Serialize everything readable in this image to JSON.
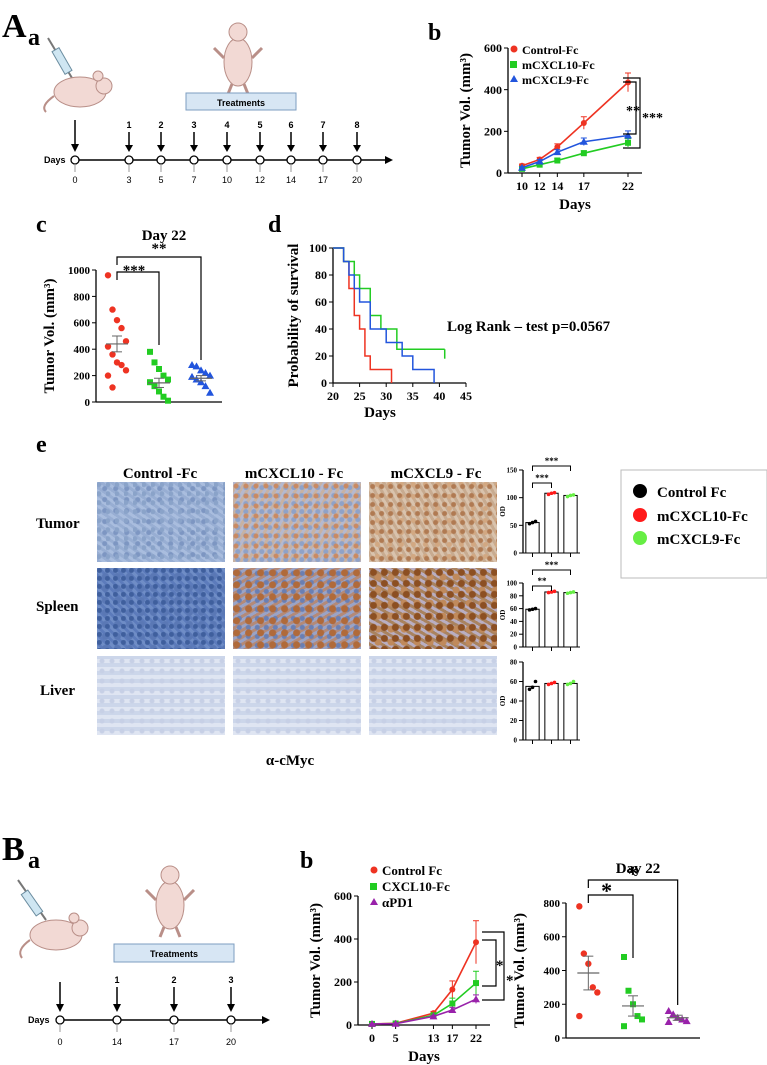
{
  "figure": {
    "panel_A_letter": "A",
    "panel_B_letter": "B",
    "sub_a": "a",
    "sub_b": "b",
    "sub_c": "c",
    "sub_d": "d",
    "sub_e": "e"
  },
  "schedule_A": {
    "treatments_label": "Treatments",
    "days_label": "Days",
    "day_ticks": [
      "0",
      "3",
      "5",
      "7",
      "10",
      "12",
      "14",
      "17",
      "20"
    ],
    "dose_numbers": [
      "1",
      "2",
      "3",
      "4",
      "5",
      "6",
      "7",
      "8"
    ]
  },
  "schedule_B": {
    "treatments_label": "Treatments",
    "days_label": "Days",
    "day_ticks": [
      "0",
      "14",
      "17",
      "20"
    ],
    "dose_numbers": [
      "1",
      "2",
      "3"
    ]
  },
  "ihc": {
    "column_labels": [
      "Control -Fc",
      "mCXCL10 - Fc",
      "mCXCL9 - Fc"
    ],
    "row_labels": [
      "Tumor",
      "Spleen",
      "Liver"
    ],
    "antibody_label": "α-cMyc",
    "legend": [
      {
        "label": "Control Fc",
        "color": "#000000"
      },
      {
        "label": "mCXCL10-Fc",
        "color": "#ff1a1a"
      },
      {
        "label": "mCXCL9-Fc",
        "color": "#66ee44"
      }
    ]
  },
  "colors": {
    "control": "#ee3322",
    "cxcl10": "#22cc22",
    "cxcl9": "#2255dd",
    "apd1": "#9922aa"
  },
  "chart_data": [
    {
      "id": "Ab",
      "type": "line",
      "xlabel": "Days",
      "ylabel": "Tumor Vol. (mm³)",
      "x": [
        10,
        12,
        14,
        17,
        22
      ],
      "xticks": [
        "10",
        "12",
        "14",
        "17",
        "22"
      ],
      "ylim": [
        0,
        600
      ],
      "yticks": [
        "0",
        "200",
        "400",
        "600"
      ],
      "legend_position": "top-left",
      "series": [
        {
          "name": "Control-Fc",
          "values": [
            35,
            65,
            125,
            240,
            435
          ],
          "errors": [
            8,
            10,
            15,
            30,
            45
          ]
        },
        {
          "name": "mCXCL10-Fc",
          "values": [
            20,
            40,
            60,
            95,
            145
          ],
          "errors": [
            5,
            8,
            10,
            12,
            20
          ]
        },
        {
          "name": "mCXCL9-Fc",
          "values": [
            25,
            55,
            100,
            150,
            180
          ],
          "errors": [
            6,
            9,
            12,
            18,
            22
          ]
        }
      ],
      "annotations": [
        "**",
        "***"
      ]
    },
    {
      "id": "Ac",
      "type": "scatter",
      "title": "Day 22",
      "ylabel": "Tumor Vol. (mm³)",
      "ylim": [
        0,
        1000
      ],
      "yticks": [
        "0",
        "200",
        "400",
        "600",
        "800",
        "1000"
      ],
      "series": [
        {
          "name": "Control-Fc",
          "values": [
            960,
            700,
            620,
            560,
            460,
            420,
            360,
            300,
            280,
            240,
            200,
            110
          ],
          "mean": 440,
          "sem": 60
        },
        {
          "name": "mCXCL10-Fc",
          "values": [
            380,
            300,
            250,
            200,
            170,
            150,
            120,
            80,
            40,
            10
          ],
          "mean": 145,
          "sem": 35
        },
        {
          "name": "mCXCL9-Fc",
          "values": [
            280,
            270,
            240,
            220,
            200,
            190,
            170,
            150,
            120,
            70
          ],
          "mean": 180,
          "sem": 20
        }
      ],
      "annotations": [
        "***",
        "**"
      ]
    },
    {
      "id": "Ad",
      "type": "line",
      "xlabel": "Days",
      "ylabel": "Probability of survival",
      "xlim": [
        20,
        45
      ],
      "xticks": [
        "20",
        "25",
        "30",
        "35",
        "40",
        "45"
      ],
      "ylim": [
        0,
        100
      ],
      "yticks": [
        "0",
        "20",
        "40",
        "60",
        "80",
        "100"
      ],
      "annotation": "Log Rank – test p=0.0567",
      "series": [
        {
          "name": "Control-Fc",
          "steps": [
            [
              20,
              100
            ],
            [
              22,
              90
            ],
            [
              23,
              70
            ],
            [
              24,
              50
            ],
            [
              25,
              40
            ],
            [
              26,
              20
            ],
            [
              27,
              10
            ],
            [
              31,
              0
            ]
          ]
        },
        {
          "name": "mCXCL10-Fc",
          "steps": [
            [
              20,
              100
            ],
            [
              22,
              90
            ],
            [
              24,
              80
            ],
            [
              25,
              70
            ],
            [
              27,
              50
            ],
            [
              29,
              40
            ],
            [
              32,
              25
            ],
            [
              41,
              25
            ]
          ]
        },
        {
          "name": "mCXCL9-Fc",
          "steps": [
            [
              20,
              100
            ],
            [
              22,
              90
            ],
            [
              23,
              80
            ],
            [
              24,
              70
            ],
            [
              25,
              60
            ],
            [
              27,
              40
            ],
            [
              30,
              30
            ],
            [
              33,
              20
            ],
            [
              35,
              10
            ],
            [
              39,
              0
            ]
          ]
        }
      ]
    },
    {
      "id": "Ae_tumor",
      "type": "bar",
      "ylabel": "OD",
      "ylim": [
        0,
        150
      ],
      "yticks": [
        "0",
        "50",
        "100",
        "150"
      ],
      "values": [
        55,
        108,
        104
      ],
      "points": [
        [
          53,
          55,
          57
        ],
        [
          106,
          108,
          109
        ],
        [
          102,
          104,
          105
        ]
      ],
      "annotations": [
        "***",
        "***"
      ]
    },
    {
      "id": "Ae_spleen",
      "type": "bar",
      "ylabel": "OD",
      "ylim": [
        0,
        100
      ],
      "yticks": [
        "0",
        "20",
        "40",
        "60",
        "80",
        "100"
      ],
      "values": [
        59,
        86,
        85
      ],
      "points": [
        [
          58,
          59,
          60
        ],
        [
          85,
          86,
          87
        ],
        [
          84,
          85,
          86
        ]
      ],
      "annotations": [
        "**",
        "***"
      ]
    },
    {
      "id": "Ae_liver",
      "type": "bar",
      "ylabel": "OD",
      "ylim": [
        0,
        80
      ],
      "yticks": [
        "0",
        "20",
        "40",
        "60",
        "80"
      ],
      "values": [
        55,
        58,
        58
      ],
      "points": [
        [
          52,
          54,
          60
        ],
        [
          57,
          58,
          59
        ],
        [
          57,
          58,
          60
        ]
      ]
    },
    {
      "id": "Bb",
      "type": "line",
      "xlabel": "Days",
      "ylabel": "Tumor Vol. (mm³)",
      "x": [
        0,
        5,
        13,
        17,
        22
      ],
      "xticks": [
        "0",
        "5",
        "13",
        "17",
        "22"
      ],
      "ylim": [
        0,
        600
      ],
      "yticks": [
        "0",
        "200",
        "400",
        "600"
      ],
      "legend_position": "top-left",
      "series": [
        {
          "name": "Control Fc",
          "values": [
            5,
            8,
            55,
            165,
            385
          ],
          "errors": [
            2,
            3,
            8,
            40,
            100
          ]
        },
        {
          "name": "CXCL10-Fc",
          "values": [
            5,
            7,
            45,
            100,
            195
          ],
          "errors": [
            2,
            2,
            6,
            25,
            55
          ]
        },
        {
          "name": "αPD1",
          "values": [
            5,
            6,
            40,
            70,
            120
          ],
          "errors": [
            2,
            2,
            5,
            12,
            20
          ]
        }
      ],
      "annotations": [
        "*",
        "*"
      ]
    },
    {
      "id": "Bc",
      "type": "scatter",
      "title": "Day 22",
      "ylabel": "Tumor Vol. (mm³)",
      "ylim": [
        0,
        800
      ],
      "yticks": [
        "0",
        "200",
        "400",
        "600",
        "800"
      ],
      "series": [
        {
          "name": "Control Fc",
          "values": [
            780,
            500,
            440,
            300,
            270,
            130
          ],
          "mean": 385,
          "sem": 100
        },
        {
          "name": "CXCL10-Fc",
          "values": [
            480,
            280,
            200,
            130,
            110,
            70
          ],
          "mean": 190,
          "sem": 60
        },
        {
          "name": "αPD1",
          "values": [
            160,
            140,
            120,
            110,
            100,
            95
          ],
          "mean": 120,
          "sem": 15
        }
      ],
      "annotations": [
        "*",
        "*"
      ]
    }
  ]
}
